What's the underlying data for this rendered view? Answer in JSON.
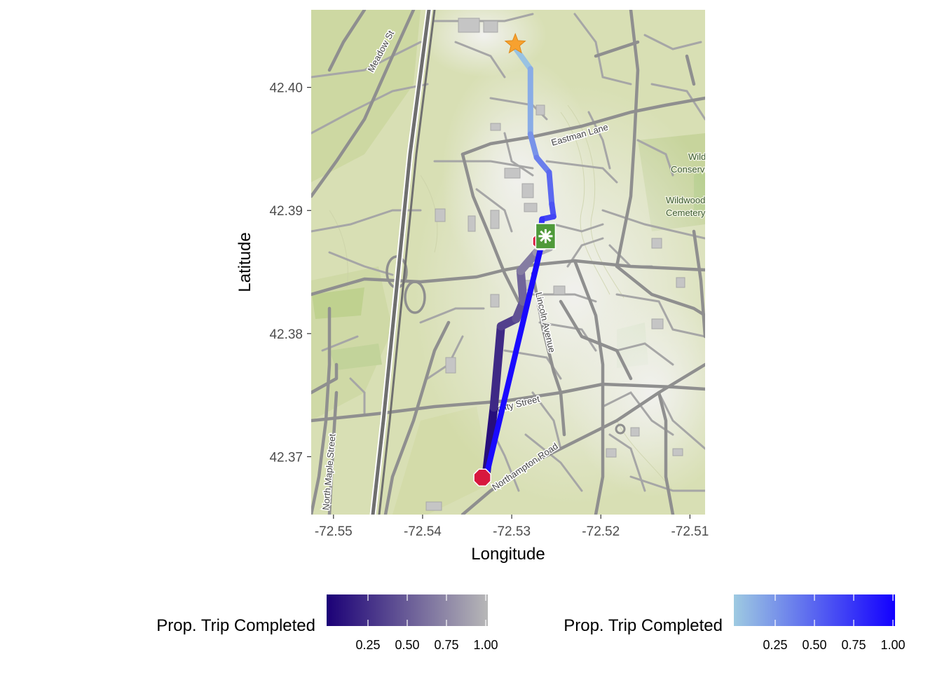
{
  "chart_data": {
    "type": "map-route",
    "x_label": "Longitude",
    "y_label": "Latitude",
    "x_range": [
      -72.5525,
      -72.5083
    ],
    "y_range": [
      42.3653,
      42.4063
    ],
    "x_ticks": [
      {
        "value": -72.55,
        "label": "-72.55"
      },
      {
        "value": -72.54,
        "label": "-72.54"
      },
      {
        "value": -72.53,
        "label": "-72.53"
      },
      {
        "value": -72.52,
        "label": "-72.52"
      },
      {
        "value": -72.51,
        "label": "-72.51"
      }
    ],
    "y_ticks": [
      {
        "value": 42.37,
        "label": "42.37"
      },
      {
        "value": 42.38,
        "label": "42.38"
      },
      {
        "value": 42.39,
        "label": "42.39"
      },
      {
        "value": 42.4,
        "label": "42.40"
      }
    ],
    "street_labels": {
      "meadow": "Meadow St",
      "eastman": "Eastman Lane",
      "lincoln": "Lincoln Avenue",
      "amity": "Amity Street",
      "northampton": "Northampton Road",
      "north_maple": "North Maple Street"
    },
    "map_labels": {
      "wildwood_1": "Wild",
      "wildwood_2": "Conserva",
      "cemetery_1": "Wildwood",
      "cemetery_2": "Cemetery"
    },
    "routes": [
      {
        "scale": "grey_purple",
        "points": [
          {
            "lon": -72.5329,
            "lat": 42.3683,
            "prop": 0.0
          },
          {
            "lon": -72.532,
            "lat": 42.374,
            "prop": 0.15
          },
          {
            "lon": -72.5312,
            "lat": 42.3806,
            "prop": 0.3
          },
          {
            "lon": -72.5295,
            "lat": 42.3812,
            "prop": 0.4
          },
          {
            "lon": -72.5287,
            "lat": 42.3826,
            "prop": 0.5
          },
          {
            "lon": -72.529,
            "lat": 42.3851,
            "prop": 0.6
          },
          {
            "lon": -72.5272,
            "lat": 42.3866,
            "prop": 0.75
          },
          {
            "lon": -72.5265,
            "lat": 42.3868,
            "prop": 0.9
          },
          {
            "lon": -72.5258,
            "lat": 42.387,
            "prop": 1.0
          }
        ]
      },
      {
        "scale": "lightblue_blue",
        "points": [
          {
            "lon": -72.5298,
            "lat": 42.4034,
            "prop": 0.0
          },
          {
            "lon": -72.5279,
            "lat": 42.4015,
            "prop": 0.08
          },
          {
            "lon": -72.5279,
            "lat": 42.3962,
            "prop": 0.22
          },
          {
            "lon": -72.5272,
            "lat": 42.3943,
            "prop": 0.32
          },
          {
            "lon": -72.5258,
            "lat": 42.3931,
            "prop": 0.42
          },
          {
            "lon": -72.5255,
            "lat": 42.3905,
            "prop": 0.55
          },
          {
            "lon": -72.5253,
            "lat": 42.3895,
            "prop": 0.62
          },
          {
            "lon": -72.5266,
            "lat": 42.3893,
            "prop": 0.7
          },
          {
            "lon": -72.5268,
            "lat": 42.3877,
            "prop": 0.8
          },
          {
            "lon": -72.5267,
            "lat": 42.3871,
            "prop": 0.9
          },
          {
            "lon": -72.5329,
            "lat": 42.3683,
            "prop": 1.0
          }
        ]
      }
    ],
    "markers": [
      {
        "type": "star",
        "lon": -72.5296,
        "lat": 42.4035,
        "color": "#f7a12f"
      },
      {
        "type": "stop",
        "lon": -72.5267,
        "lat": 42.3875,
        "color": "#d7183e"
      },
      {
        "type": "bus-stop",
        "lon": -72.5262,
        "lat": 42.3878,
        "color": "#4f9a3a"
      },
      {
        "type": "stop",
        "lon": -72.5333,
        "lat": 42.3683,
        "color": "#d7183e"
      }
    ],
    "legends": [
      {
        "title": "Prop. Trip Completed",
        "colors": [
          "#1b0077",
          "#b7b7b7"
        ],
        "ticks": [
          "0.25",
          "0.50",
          "0.75",
          "1.00"
        ],
        "tick_values": [
          0.25,
          0.5,
          0.75,
          1.0
        ],
        "range": [
          0.0,
          1.0
        ]
      },
      {
        "title": "Prop. Trip Completed",
        "colors": [
          "#9ecae1",
          "#1300ff"
        ],
        "ticks": [
          "0.25",
          "0.50",
          "0.75",
          "1.00"
        ],
        "tick_values": [
          0.25,
          0.5,
          0.75,
          1.0
        ],
        "range": [
          0.0,
          1.0
        ]
      }
    ]
  }
}
